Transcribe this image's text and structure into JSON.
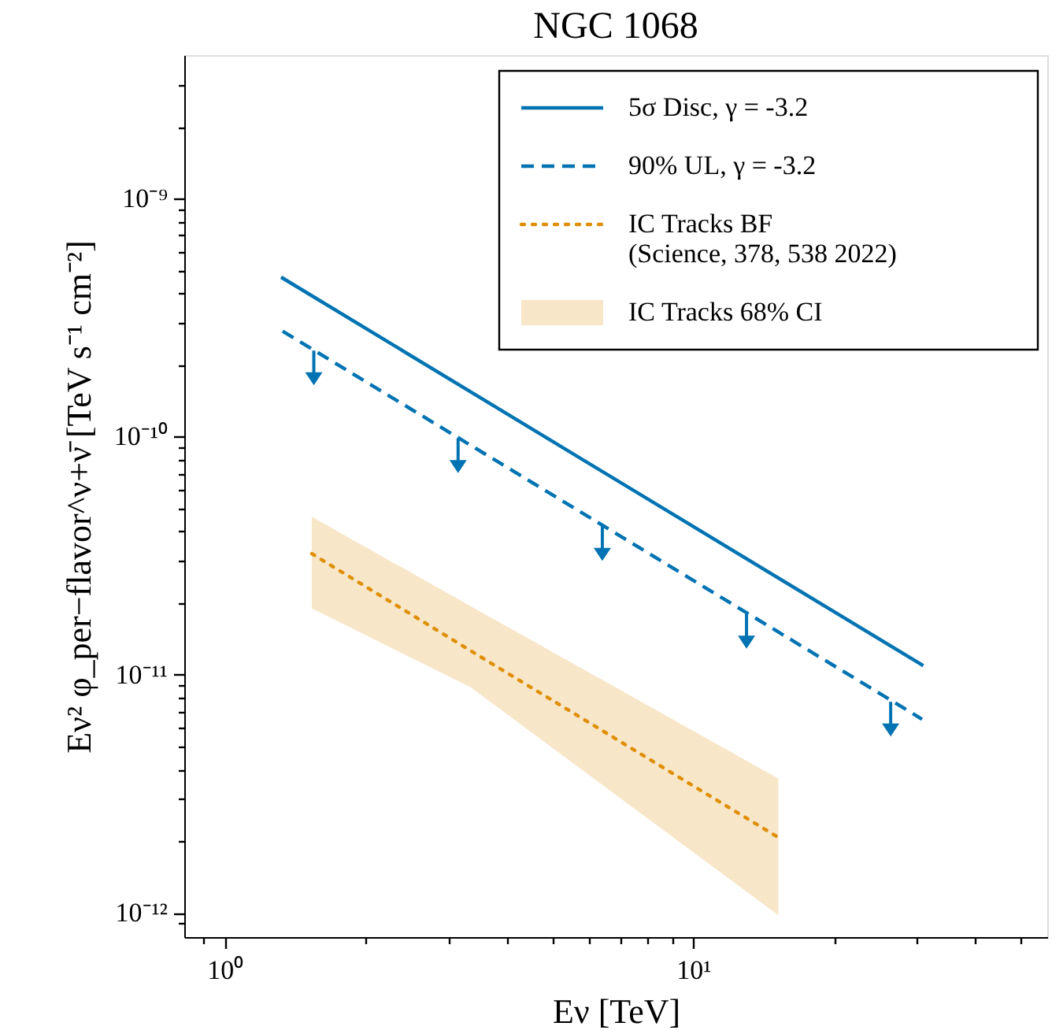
{
  "chart_data": {
    "type": "line",
    "title": "NGC 1068",
    "xlabel": "Eν [TeV]",
    "ylabel": "Eν² φ_per−flavor^ν+ν̄ [TeV s⁻¹ cm⁻²]",
    "log": "xy",
    "legend": "top right",
    "xlim": [
      0.82,
      57
    ],
    "ylim": [
      7.9e-13,
      4e-09
    ],
    "xticks": [
      {
        "value": 0.9,
        "label": null
      },
      {
        "value": 1,
        "label": "10⁰"
      },
      {
        "value": 2,
        "label": null
      },
      {
        "value": 3,
        "label": null
      },
      {
        "value": 4,
        "label": null
      },
      {
        "value": 5,
        "label": null
      },
      {
        "value": 6,
        "label": null
      },
      {
        "value": 7,
        "label": null
      },
      {
        "value": 8,
        "label": null
      },
      {
        "value": 9,
        "label": null
      },
      {
        "value": 10,
        "label": "10¹"
      },
      {
        "value": 20,
        "label": null
      },
      {
        "value": 30,
        "label": null
      },
      {
        "value": 40,
        "label": null
      },
      {
        "value": 50,
        "label": null
      }
    ],
    "yticks": [
      {
        "value": 9e-13,
        "label": null
      },
      {
        "value": 1e-12,
        "label": "10⁻¹²"
      },
      {
        "value": 2e-12,
        "label": null
      },
      {
        "value": 3e-12,
        "label": null
      },
      {
        "value": 4e-12,
        "label": null
      },
      {
        "value": 5e-12,
        "label": null
      },
      {
        "value": 6e-12,
        "label": null
      },
      {
        "value": 7e-12,
        "label": null
      },
      {
        "value": 8e-12,
        "label": null
      },
      {
        "value": 9e-12,
        "label": null
      },
      {
        "value": 1e-11,
        "label": "10⁻¹¹"
      },
      {
        "value": 2e-11,
        "label": null
      },
      {
        "value": 3e-11,
        "label": null
      },
      {
        "value": 4e-11,
        "label": null
      },
      {
        "value": 5e-11,
        "label": null
      },
      {
        "value": 6e-11,
        "label": null
      },
      {
        "value": 7e-11,
        "label": null
      },
      {
        "value": 8e-11,
        "label": null
      },
      {
        "value": 9e-11,
        "label": null
      },
      {
        "value": 1e-10,
        "label": "10⁻¹⁰"
      },
      {
        "value": 2e-10,
        "label": null
      },
      {
        "value": 3e-10,
        "label": null
      },
      {
        "value": 4e-10,
        "label": null
      },
      {
        "value": 5e-10,
        "label": null
      },
      {
        "value": 6e-10,
        "label": null
      },
      {
        "value": 7e-10,
        "label": null
      },
      {
        "value": 8e-10,
        "label": null
      },
      {
        "value": 9e-10,
        "label": null
      },
      {
        "value": 1e-09,
        "label": "10⁻⁹"
      },
      {
        "value": 2e-09,
        "label": null
      },
      {
        "value": 3e-09,
        "label": null
      }
    ],
    "series": [
      {
        "type": "line",
        "name": "5σ Disc, γ = -3.2",
        "color": "#0173b2",
        "line_style": "solid",
        "x": [
          1.32,
          31.0
        ],
        "values": [
          4.67e-10,
          1.09e-11
        ]
      },
      {
        "type": "line",
        "name": "90% UL, γ = -3.2",
        "color": "#0173b2",
        "line_style": "dashed",
        "x": [
          1.33,
          30.8
        ],
        "values": [
          2.77e-10,
          6.5e-12
        ]
      },
      {
        "type": "scatter",
        "marker": "triangle",
        "color": "#0173b2",
        "x": [
          1.55,
          3.15,
          6.4,
          13.0,
          26.4
        ],
        "values": [
          1.94e-10,
          8.3e-11,
          3.55e-11,
          1.52e-11,
          6.5e-12
        ]
      },
      {
        "type": "line",
        "name": "IC Tracks BF\n(Science, 378, 538 2022)",
        "color": "#de8f05",
        "line_style": "dotted",
        "x": [
          1.535,
          3.35,
          15.2
        ],
        "values": [
          3.22e-11,
          1.26e-11,
          2.07e-12
        ],
        "lower": [
          1.9e-11,
          8.85e-12,
          9.75e-13
        ],
        "upper": [
          4.6e-11,
          1.94e-11,
          3.66e-12
        ]
      }
    ],
    "annotations": [
      "IC Tracks 68% CI"
    ]
  }
}
